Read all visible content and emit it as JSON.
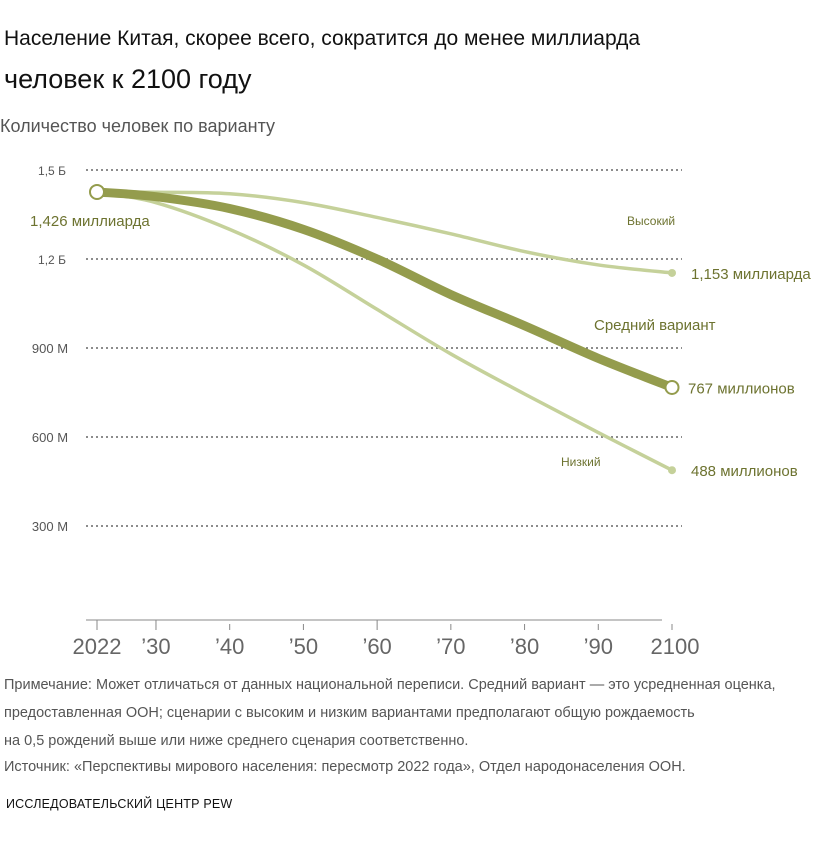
{
  "title_line1": "Население Китая, скорее всего, сократится до менее миллиарда",
  "title_line2": "человек к 2100 году",
  "chart_data": {
    "type": "line",
    "subtitle": "Количество человек по варианту",
    "x": [
      2022,
      2030,
      2040,
      2050,
      2060,
      2070,
      2080,
      2090,
      2100
    ],
    "xticks": [
      "2022",
      "’30",
      "’40",
      "’50",
      "’60",
      "’70",
      "’80",
      "’90",
      "2100"
    ],
    "yticks": [
      {
        "v": 1.5,
        "label": "1,5 Б"
      },
      {
        "v": 1.2,
        "label": "1,2 Б"
      },
      {
        "v": 0.9,
        "label": "900 М"
      },
      {
        "v": 0.6,
        "label": "600 М"
      },
      {
        "v": 0.3,
        "label": "300 М"
      }
    ],
    "ylim": [
      0,
      1.5
    ],
    "series": [
      {
        "name": "Высокий",
        "values": [
          1.426,
          1.425,
          1.42,
          1.39,
          1.34,
          1.285,
          1.225,
          1.18,
          1.153
        ],
        "end_label": "1,153 миллиарда",
        "color": "#c5d19a"
      },
      {
        "name": "Низкий",
        "values": [
          1.426,
          1.39,
          1.3,
          1.18,
          1.03,
          0.88,
          0.745,
          0.615,
          0.488
        ],
        "end_label": "488 миллионов",
        "color": "#c5d19a"
      },
      {
        "name": "Средний вариант",
        "values": [
          1.426,
          1.41,
          1.37,
          1.3,
          1.2,
          1.08,
          0.975,
          0.865,
          0.767
        ],
        "end_label": "767 миллионов",
        "color": "#949c4d"
      }
    ],
    "start_label": "1,426 миллиарда"
  },
  "notes": [
    "Примечание: Может отличаться от данных национальной переписи. Средний вариант — это усредненная оценка,",
    "предоставленная ООН; сценарии с высоким и низким вариантами предполагают общую рождаемость",
    " на 0,5 рождений выше или ниже среднего сценария соответственно.",
    "Источник: «Перспективы мирового населения: пересмотр 2022 года», Отдел народонаселения ООН."
  ],
  "brand": "ИССЛЕДОВАТЕЛЬСКИЙ ЦЕНТР PEW"
}
